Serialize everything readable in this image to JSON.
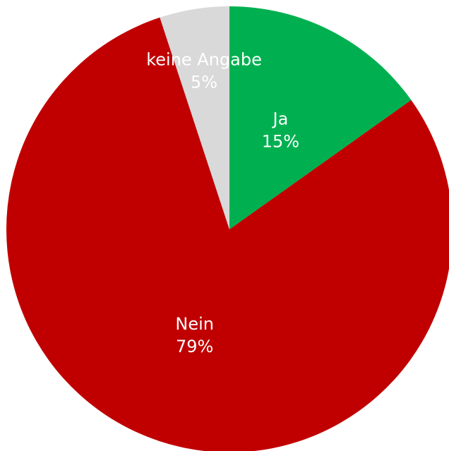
{
  "chart_data": {
    "type": "pie",
    "categories": [
      "Ja",
      "Nein",
      "keine Angabe"
    ],
    "values": [
      15,
      79,
      5
    ],
    "value_labels": [
      "15%",
      "79%",
      "5%"
    ],
    "colors": [
      "#00b050",
      "#c00000",
      "#d9d9d9"
    ]
  }
}
